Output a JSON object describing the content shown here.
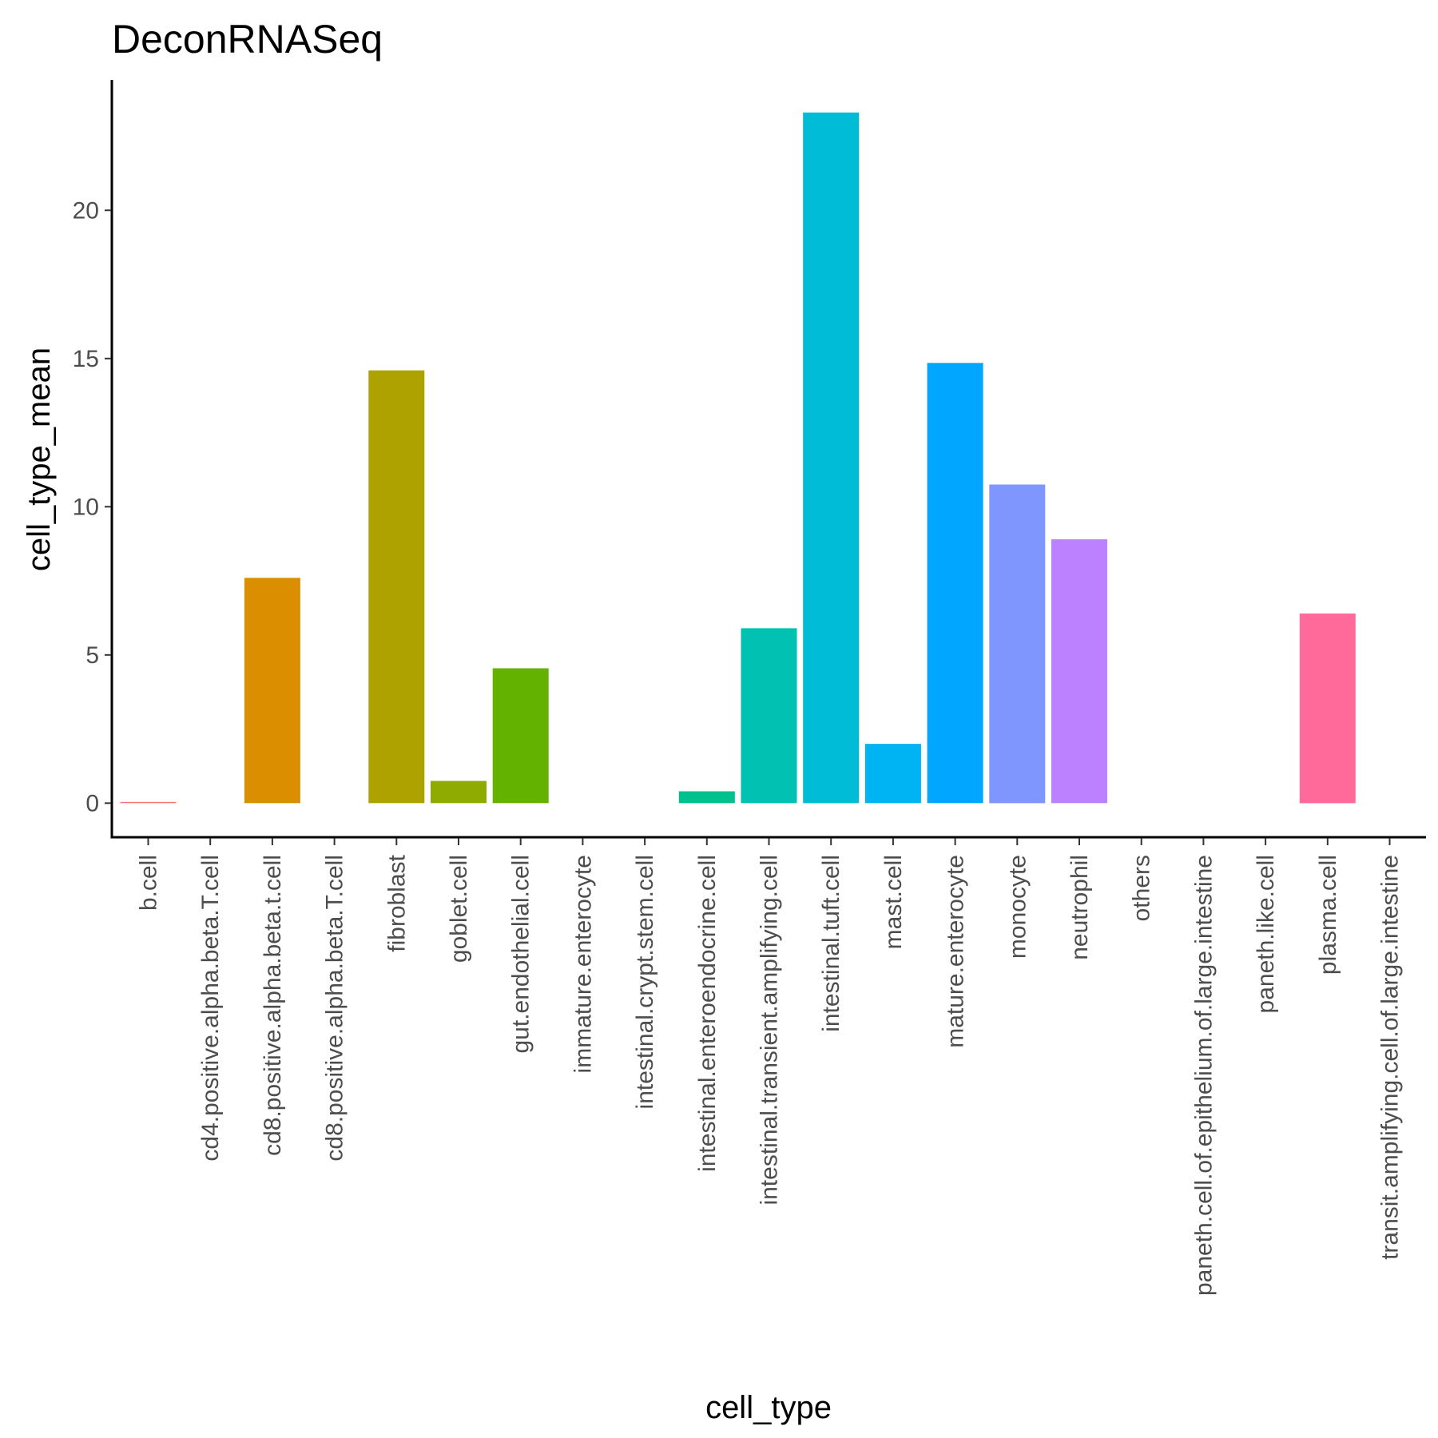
{
  "chart_data": {
    "type": "bar",
    "title": "DeconRNASeq",
    "xlabel": "cell_type",
    "ylabel": "cell_type_mean",
    "ylim": [
      -1.15,
      24.4
    ],
    "yticks": [
      0,
      5,
      10,
      15,
      20
    ],
    "grid": false,
    "legend": "none",
    "categories": [
      "b.cell",
      "cd4.positive.alpha.beta.T.cell",
      "cd8.positive.alpha.beta.t.cell",
      "cd8.positive.alpha.beta.T.cell",
      "fibroblast",
      "goblet.cell",
      "gut.endothelial.cell",
      "immature.enterocyte",
      "intestinal.crypt.stem.cell",
      "intestinal.enteroendocrine.cell",
      "intestinal.transient.amplifying.cell",
      "intestinal.tuft.cell",
      "mast.cell",
      "mature.enterocyte",
      "monocyte",
      "neutrophil",
      "others",
      "paneth.cell.of.epithelium.of.large.intestine",
      "paneth.like.cell",
      "plasma.cell",
      "transit.amplifying.cell.of.large.intestine"
    ],
    "values": [
      0.04,
      0,
      7.6,
      0,
      14.6,
      0.75,
      4.55,
      0,
      0,
      0.4,
      5.9,
      23.3,
      2.0,
      14.85,
      10.75,
      8.9,
      0,
      0,
      0,
      6.4,
      0
    ],
    "colors": [
      "#F8766D",
      "#EC8239",
      "#DB8E00",
      "#C79800",
      "#AEA200",
      "#8FAA00",
      "#64B200",
      "#00B81B",
      "#00BD5C",
      "#00C08D",
      "#00C1B2",
      "#00BCD6",
      "#00B3F2",
      "#00A6FF",
      "#7F96FF",
      "#BC81FF",
      "#E26EF7",
      "#F863DF",
      "#FF62BF",
      "#FF6A9A",
      "#F8766D"
    ]
  }
}
